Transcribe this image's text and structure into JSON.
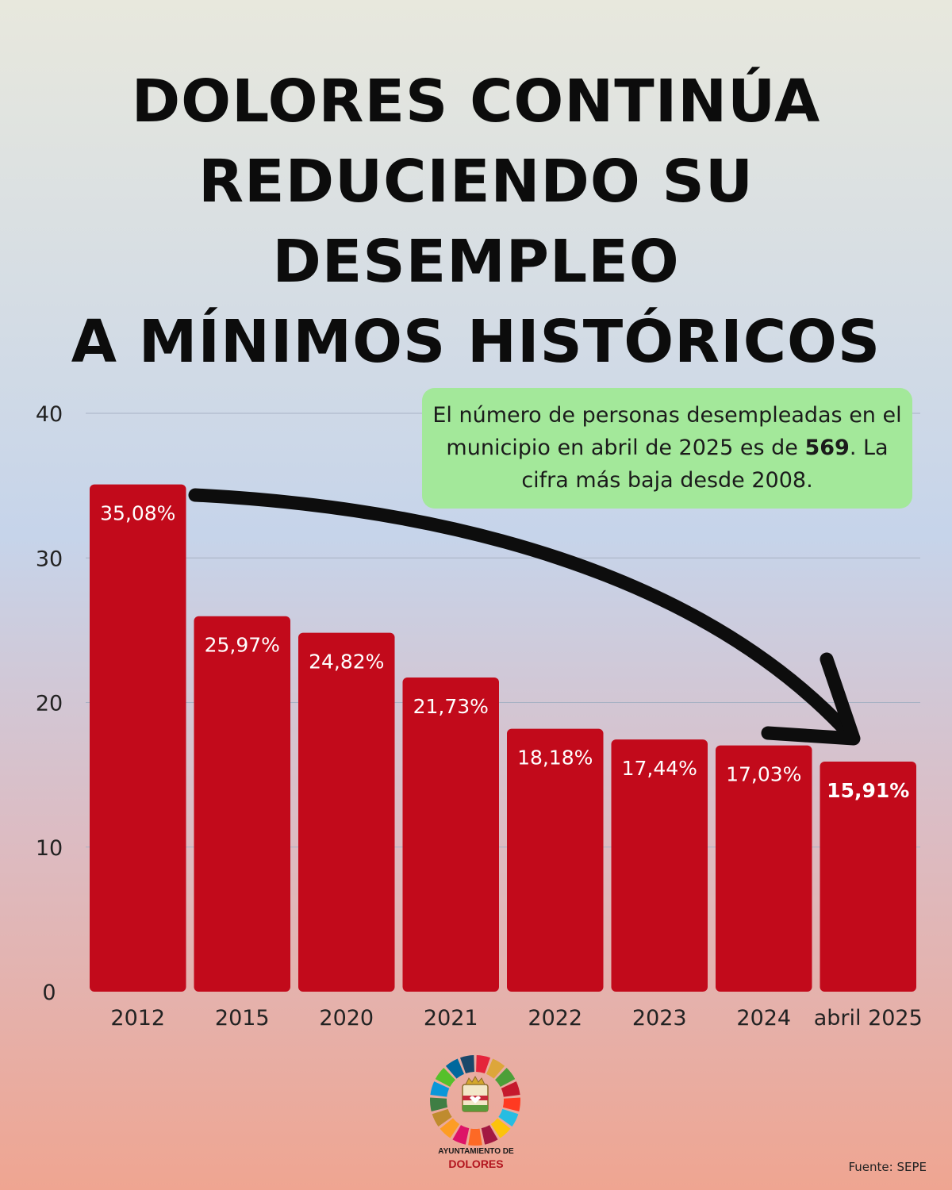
{
  "title": {
    "line1": "DOLORES CONTINÚA",
    "line2": "REDUCIENDO SU",
    "line3": "DESEMPLEO",
    "line4": "A MÍNIMOS HISTÓRICOS"
  },
  "callout": {
    "text_before": "El número de personas desempleadas en el municipio en abril de 2025 es de ",
    "highlight": "569",
    "text_after": ". La cifra más baja desde 2008."
  },
  "chart_data": {
    "type": "bar",
    "title": "DOLORES CONTINÚA REDUCIENDO SU DESEMPLEO A MÍNIMOS HISTÓRICOS",
    "xlabel": "",
    "ylabel": "",
    "categories": [
      "2012",
      "2015",
      "2020",
      "2021",
      "2022",
      "2023",
      "2024",
      "abril 2025"
    ],
    "values": [
      35.08,
      25.97,
      24.82,
      21.73,
      18.18,
      17.44,
      17.03,
      15.91
    ],
    "labels": [
      "35,08%",
      "25,97%",
      "24,82%",
      "21,73%",
      "18,18%",
      "17,44%",
      "17,03%",
      "15,91%"
    ],
    "highlight_index": 7,
    "ylim": [
      0,
      40
    ],
    "yticks": [
      0,
      10,
      20,
      30,
      40
    ],
    "grid": true,
    "bar_color": "#c20a1b",
    "annotation": "downward arrow from 2012 bar to abril 2025 bar"
  },
  "logo": {
    "line1": "AYUNTAMIENTO DE",
    "line2": "DOLORES"
  },
  "source": "Fuente: SEPE"
}
